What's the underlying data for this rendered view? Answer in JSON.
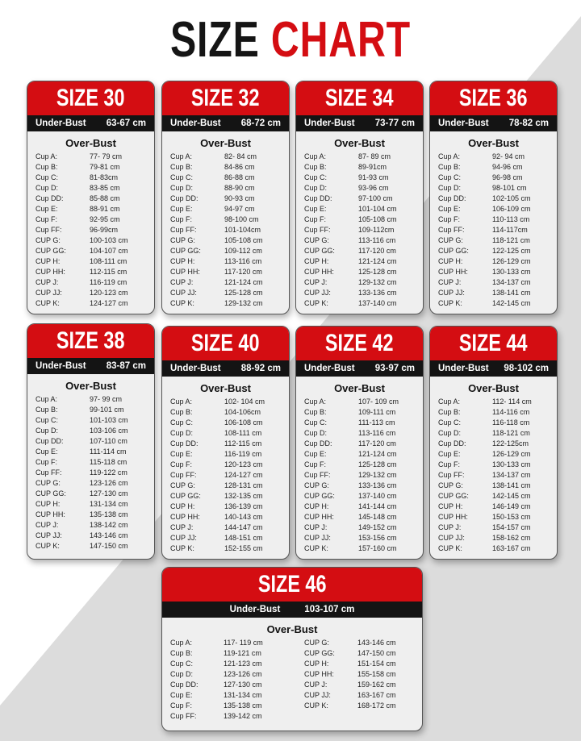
{
  "title": {
    "word1": "SIZE",
    "word2": "CHART"
  },
  "colors": {
    "accent": "#d40d12",
    "bar": "#141414",
    "card_bg": "#efefef"
  },
  "under_bust_label": "Under-Bust",
  "over_bust_label": "Over-Bust",
  "sizes": [
    {
      "name": "SIZE 30",
      "under_bust": "63-67 cm",
      "cups": [
        [
          "Cup A:",
          "77- 79 cm"
        ],
        [
          "Cup B:",
          "79-81 cm"
        ],
        [
          "Cup C:",
          "81-83cm"
        ],
        [
          "Cup D:",
          "83-85 cm"
        ],
        [
          "Cup DD:",
          "85-88 cm"
        ],
        [
          "Cup E:",
          "88-91 cm"
        ],
        [
          "Cup F:",
          "92-95 cm"
        ],
        [
          "Cup FF:",
          "96-99cm"
        ],
        [
          "CUP G:",
          "100-103 cm"
        ],
        [
          "CUP GG:",
          "104-107 cm"
        ],
        [
          "CUP H:",
          "108-111 cm"
        ],
        [
          "CUP HH:",
          "112-115 cm"
        ],
        [
          "CUP J:",
          "116-119 cm"
        ],
        [
          "CUP JJ:",
          "120-123 cm"
        ],
        [
          "CUP K:",
          "124-127 cm"
        ]
      ]
    },
    {
      "name": "SIZE 32",
      "under_bust": "68-72 cm",
      "cups": [
        [
          "Cup A:",
          "82- 84 cm"
        ],
        [
          "Cup B:",
          "84-86 cm"
        ],
        [
          "Cup C:",
          "86-88 cm"
        ],
        [
          "Cup D:",
          "88-90 cm"
        ],
        [
          "Cup DD:",
          "90-93 cm"
        ],
        [
          "Cup E:",
          "94-97 cm"
        ],
        [
          "Cup F:",
          "98-100 cm"
        ],
        [
          "Cup FF:",
          "101-104cm"
        ],
        [
          "CUP G:",
          "105-108 cm"
        ],
        [
          "CUP GG:",
          "109-112 cm"
        ],
        [
          "CUP H:",
          "113-116 cm"
        ],
        [
          "CUP HH:",
          "117-120 cm"
        ],
        [
          "CUP J:",
          "121-124 cm"
        ],
        [
          "CUP JJ:",
          "125-128 cm"
        ],
        [
          "CUP K:",
          "129-132 cm"
        ]
      ]
    },
    {
      "name": "SIZE 34",
      "under_bust": "73-77 cm",
      "cups": [
        [
          "Cup A:",
          "87- 89 cm"
        ],
        [
          "Cup B:",
          "89-91cm"
        ],
        [
          "Cup C:",
          "91-93 cm"
        ],
        [
          "Cup D:",
          "93-96 cm"
        ],
        [
          "Cup DD:",
          "97-100 cm"
        ],
        [
          "Cup E:",
          "101-104 cm"
        ],
        [
          "Cup F:",
          "105-108 cm"
        ],
        [
          "Cup FF:",
          "109-112cm"
        ],
        [
          "CUP G:",
          "113-116 cm"
        ],
        [
          "CUP GG:",
          "117-120 cm"
        ],
        [
          "CUP H:",
          "121-124 cm"
        ],
        [
          "CUP HH:",
          "125-128 cm"
        ],
        [
          "CUP J:",
          "129-132 cm"
        ],
        [
          "CUP JJ:",
          "133-136 cm"
        ],
        [
          "CUP K:",
          "137-140 cm"
        ]
      ]
    },
    {
      "name": "SIZE 36",
      "under_bust": "78-82 cm",
      "cups": [
        [
          "Cup A:",
          "92- 94 cm"
        ],
        [
          "Cup B:",
          "94-96 cm"
        ],
        [
          "Cup C:",
          "96-98 cm"
        ],
        [
          "Cup D:",
          "98-101 cm"
        ],
        [
          "Cup DD:",
          "102-105 cm"
        ],
        [
          "Cup E:",
          "106-109 cm"
        ],
        [
          "Cup F:",
          "110-113 cm"
        ],
        [
          "Cup FF:",
          "114-117cm"
        ],
        [
          "CUP G:",
          "118-121 cm"
        ],
        [
          "CUP GG:",
          "122-125 cm"
        ],
        [
          "CUP H:",
          "126-129 cm"
        ],
        [
          "CUP HH:",
          "130-133 cm"
        ],
        [
          "CUP J:",
          "134-137 cm"
        ],
        [
          "CUP JJ:",
          "138-141 cm"
        ],
        [
          "CUP K:",
          "142-145 cm"
        ]
      ]
    },
    {
      "name": "SIZE 38",
      "under_bust": "83-87 cm",
      "cups": [
        [
          "Cup A:",
          "97- 99 cm"
        ],
        [
          "Cup B:",
          "99-101 cm"
        ],
        [
          "Cup C:",
          "101-103 cm"
        ],
        [
          "Cup D:",
          "103-106 cm"
        ],
        [
          "Cup DD:",
          "107-110 cm"
        ],
        [
          "Cup E:",
          "111-114 cm"
        ],
        [
          "Cup F:",
          "115-118 cm"
        ],
        [
          "Cup FF:",
          "119-122 cm"
        ],
        [
          "CUP G:",
          "123-126 cm"
        ],
        [
          "CUP GG:",
          "127-130 cm"
        ],
        [
          "CUP H:",
          "131-134 cm"
        ],
        [
          "CUP HH:",
          "135-138 cm"
        ],
        [
          "CUP J:",
          "138-142 cm"
        ],
        [
          "CUP JJ:",
          "143-146 cm"
        ],
        [
          "CUP K:",
          "147-150 cm"
        ]
      ]
    },
    {
      "name": "SIZE 40",
      "under_bust": "88-92 cm",
      "cups": [
        [
          "Cup A:",
          "102- 104 cm"
        ],
        [
          "Cup B:",
          "104-106cm"
        ],
        [
          "Cup C:",
          "106-108 cm"
        ],
        [
          "Cup D:",
          "108-111 cm"
        ],
        [
          "Cup DD:",
          "112-115 cm"
        ],
        [
          "Cup E:",
          "116-119 cm"
        ],
        [
          "Cup F:",
          "120-123 cm"
        ],
        [
          "Cup FF:",
          "124-127 cm"
        ],
        [
          "CUP G:",
          "128-131 cm"
        ],
        [
          "CUP GG:",
          "132-135 cm"
        ],
        [
          "CUP H:",
          "136-139 cm"
        ],
        [
          "CUP HH:",
          "140-143 cm"
        ],
        [
          "CUP J:",
          "144-147 cm"
        ],
        [
          "CUP JJ:",
          "148-151 cm"
        ],
        [
          "CUP K:",
          "152-155 cm"
        ]
      ]
    },
    {
      "name": "SIZE 42",
      "under_bust": "93-97 cm",
      "cups": [
        [
          "Cup A:",
          "107- 109 cm"
        ],
        [
          "Cup B:",
          "109-111 cm"
        ],
        [
          "Cup C:",
          "111-113 cm"
        ],
        [
          "Cup D:",
          "113-116 cm"
        ],
        [
          "Cup DD:",
          "117-120 cm"
        ],
        [
          "Cup E:",
          "121-124 cm"
        ],
        [
          "Cup F:",
          "125-128 cm"
        ],
        [
          "Cup FF:",
          "129-132 cm"
        ],
        [
          "CUP G:",
          "133-136 cm"
        ],
        [
          "CUP GG:",
          "137-140 cm"
        ],
        [
          "CUP H:",
          "141-144 cm"
        ],
        [
          "CUP HH:",
          "145-148 cm"
        ],
        [
          "CUP J:",
          "149-152 cm"
        ],
        [
          "CUP JJ:",
          "153-156 cm"
        ],
        [
          "CUP K:",
          "157-160 cm"
        ]
      ]
    },
    {
      "name": "SIZE 44",
      "under_bust": "98-102 cm",
      "cups": [
        [
          "Cup A:",
          "112- 114 cm"
        ],
        [
          "Cup B:",
          "114-116 cm"
        ],
        [
          "Cup C:",
          "116-118 cm"
        ],
        [
          "Cup D:",
          "118-121 cm"
        ],
        [
          "Cup DD:",
          "122-125cm"
        ],
        [
          "Cup E:",
          "126-129 cm"
        ],
        [
          "Cup F:",
          "130-133 cm"
        ],
        [
          "Cup FF:",
          "134-137 cm"
        ],
        [
          "CUP G:",
          "138-141 cm"
        ],
        [
          "CUP GG:",
          "142-145 cm"
        ],
        [
          "CUP H:",
          "146-149 cm"
        ],
        [
          "CUP HH:",
          "150-153 cm"
        ],
        [
          "CUP J:",
          "154-157 cm"
        ],
        [
          "CUP JJ:",
          "158-162 cm"
        ],
        [
          "CUP K:",
          "163-167 cm"
        ]
      ]
    },
    {
      "name": "SIZE 46",
      "under_bust": "103-107 cm",
      "cups": [
        [
          "Cup A:",
          "117- 119 cm"
        ],
        [
          "Cup B:",
          "119-121 cm"
        ],
        [
          "Cup C:",
          "121-123 cm"
        ],
        [
          "Cup D:",
          "123-126 cm"
        ],
        [
          "Cup DD:",
          "127-130 cm"
        ],
        [
          "Cup E:",
          "131-134 cm"
        ],
        [
          "Cup F:",
          "135-138 cm"
        ],
        [
          "Cup FF:",
          "139-142 cm"
        ],
        [
          "CUP G:",
          "143-146 cm"
        ],
        [
          "CUP GG:",
          "147-150 cm"
        ],
        [
          "CUP H:",
          "151-154 cm"
        ],
        [
          "CUP HH:",
          "155-158 cm"
        ],
        [
          "CUP J:",
          "159-162 cm"
        ],
        [
          "CUP JJ:",
          "163-167 cm"
        ],
        [
          "CUP K:",
          "168-172 cm"
        ]
      ]
    }
  ]
}
